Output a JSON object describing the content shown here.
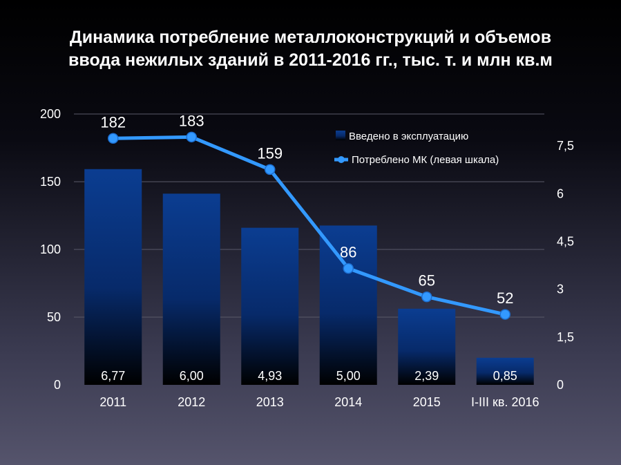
{
  "title": {
    "line1": "Динамика потребление металлоконструкций и объемов",
    "line2": "ввода нежилых зданий в 2011-2016 гг., тыс. т. и млн кв.м"
  },
  "chart_data": {
    "type": "bar+line",
    "categories": [
      "2011",
      "2012",
      "2013",
      "2014",
      "2015",
      "I-III кв. 2016"
    ],
    "bar_series": {
      "name": "Введено в эксплуатацию",
      "axis": "right",
      "values": [
        6.77,
        6.0,
        4.93,
        5.0,
        2.39,
        0.85
      ],
      "labels": [
        "6,77",
        "6,00",
        "4,93",
        "5,00",
        "2,39",
        "0,85"
      ],
      "color": "#0a3a8c"
    },
    "line_series": {
      "name": "Потреблено МК (левая шкала)",
      "axis": "left",
      "values": [
        182,
        183,
        159,
        86,
        65,
        52
      ],
      "labels": [
        "182",
        "183",
        "159",
        "86",
        "65",
        "52"
      ],
      "color": "#3399ff"
    },
    "left_axis": {
      "min": 0,
      "max": 200,
      "ticks": [
        "0",
        "50",
        "100",
        "150",
        "200"
      ],
      "tick_values": [
        0,
        50,
        100,
        150,
        200
      ]
    },
    "right_axis": {
      "min": 0,
      "max": 8.5,
      "ticks": [
        "0",
        "1,5",
        "3",
        "4,5",
        "6",
        "7,5"
      ],
      "tick_values": [
        0,
        1.5,
        3,
        4.5,
        6,
        7.5
      ]
    },
    "grid": true,
    "legend_position": "top-right"
  }
}
